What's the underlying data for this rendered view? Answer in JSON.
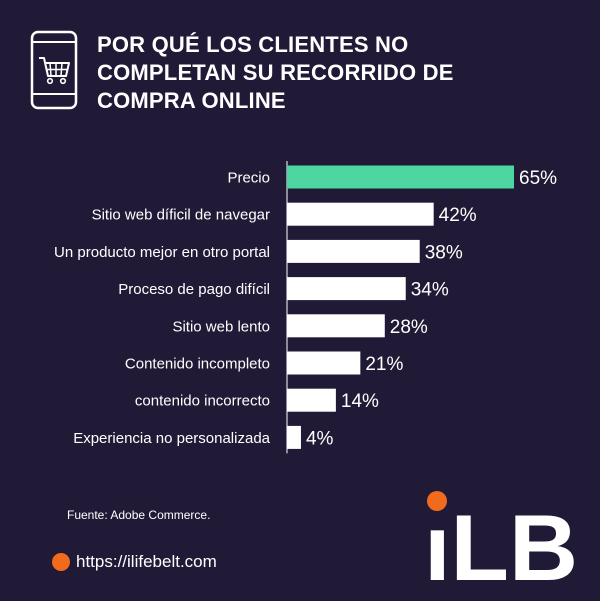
{
  "header": {
    "title_lines": [
      "POR QUÉ LOS CLIENTES NO",
      "COMPLETAN SU RECORRIDO DE",
      "COMPRA ONLINE"
    ],
    "icon": "smartphone-shopping-cart-icon"
  },
  "chart_data": {
    "type": "bar",
    "orientation": "horizontal",
    "categories": [
      "Precio",
      "Sitio web díficil de navegar",
      "Un producto mejor en otro portal",
      "Proceso de pago difícil",
      "Sitio web lento",
      "Contenido incompleto",
      "contenido incorrecto",
      "Experiencia no personalizada"
    ],
    "values": [
      65,
      42,
      38,
      34,
      28,
      21,
      14,
      4
    ],
    "value_labels": [
      "65%",
      "42%",
      "38%",
      "34%",
      "28%",
      "21%",
      "14%",
      "4%"
    ],
    "unit": "%",
    "highlight_index": 0,
    "xlim": [
      0,
      65
    ],
    "grid": false,
    "legend": "none"
  },
  "colors": {
    "background": "#211a37",
    "bar_default": "#ffffff",
    "bar_highlight": "#4ed6a0",
    "axis_line": "#ffffff",
    "text": "#ffffff",
    "accent_orange": "#f26a1b"
  },
  "footer": {
    "source": "Fuente: Adobe Commerce.",
    "url": "https://ilifebelt.com",
    "logo_text": "iLB"
  }
}
